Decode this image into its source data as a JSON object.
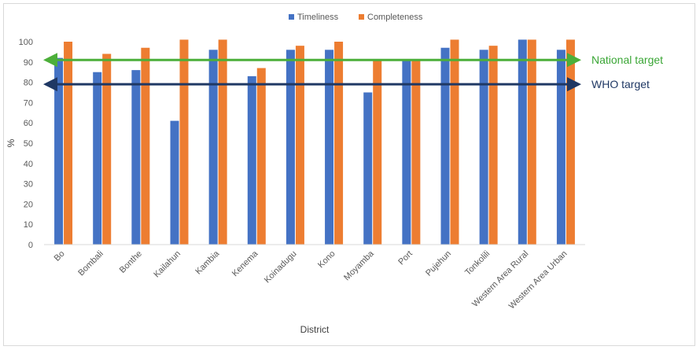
{
  "chart_data": {
    "type": "bar",
    "categories": [
      "Bo",
      "Bombali",
      "Bonthe",
      "Kailahun",
      "Kambia",
      "Kenema",
      "Koinadugu",
      "Kono",
      "Moyamba",
      "Port",
      "Pujehun",
      "Tonkolili",
      "Western Area Rural",
      "Western Area Urban"
    ],
    "series": [
      {
        "name": "Timeliness",
        "color": "#4472c4",
        "values": [
          92,
          85,
          86,
          61,
          96,
          83,
          96,
          96,
          75,
          91,
          97,
          96,
          101,
          96
        ]
      },
      {
        "name": "Completeness",
        "color": "#ed7d31",
        "values": [
          100,
          94,
          97,
          101,
          101,
          87,
          98,
          100,
          91,
          91,
          101,
          98,
          101,
          101
        ]
      }
    ],
    "xlabel": "District",
    "ylabel": "%",
    "ylim": [
      0,
      100
    ],
    "yticks": [
      0,
      10,
      20,
      30,
      40,
      50,
      60,
      70,
      80,
      90,
      100
    ],
    "grid": false,
    "legend_position": "top-center",
    "reference_lines": [
      {
        "label": "National target",
        "value": 91,
        "color": "#4caf3a",
        "label_color": "#3aa635"
      },
      {
        "label": "WHO target",
        "value": 79,
        "color": "#1f3864",
        "label_color": "#1f3864"
      }
    ]
  }
}
